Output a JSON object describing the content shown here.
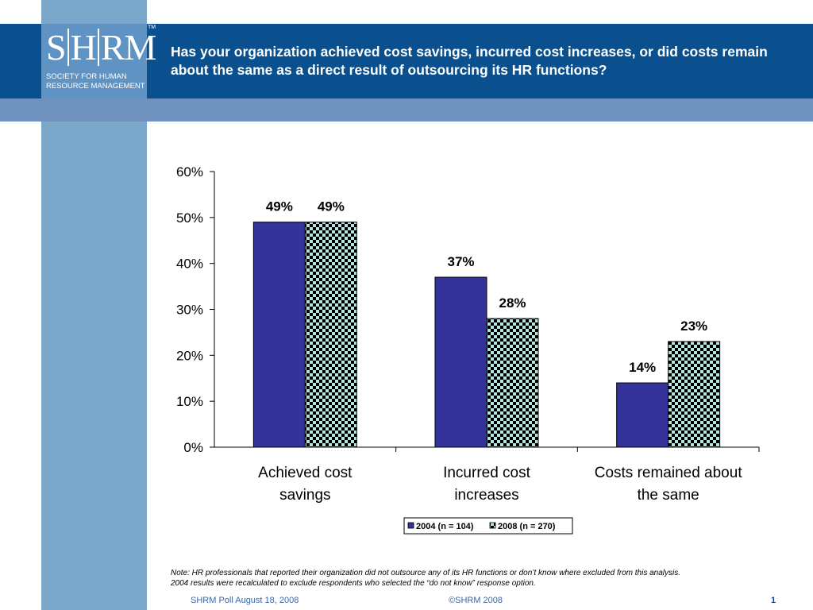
{
  "header": {
    "title": "Has your organization achieved cost savings, incurred cost increases, or did costs remain about the same as a direct result of outsourcing its HR functions?"
  },
  "logo": {
    "letters": [
      "S",
      "H",
      "R",
      "M"
    ],
    "tm": "TM",
    "line1": "SOCIETY FOR HUMAN",
    "line2": "RESOURCE MANAGEMENT"
  },
  "chart_data": {
    "type": "bar",
    "categories": [
      [
        "Achieved cost",
        "savings"
      ],
      [
        "Incurred cost",
        "increases"
      ],
      [
        "Costs remained about",
        "the same"
      ]
    ],
    "series": [
      {
        "name": "2004 (n = 104)",
        "values": [
          49,
          37,
          14
        ],
        "labels": [
          "49%",
          "37%",
          "14%"
        ],
        "color": "#333399",
        "pattern": "solid"
      },
      {
        "name": "2008 (n = 270)",
        "values": [
          49,
          28,
          23
        ],
        "labels": [
          "49%",
          "28%",
          "23%"
        ],
        "color": "#b7e4de",
        "pattern": "checkerboard"
      }
    ],
    "ylim": [
      0,
      60
    ],
    "yticks": [
      0,
      10,
      20,
      30,
      40,
      50,
      60
    ],
    "ytick_labels": [
      "0%",
      "10%",
      "20%",
      "30%",
      "40%",
      "50%",
      "60%"
    ],
    "grid": false,
    "legend_position": "bottom-center"
  },
  "note": {
    "line1": "Note:  HR professionals that reported their organization did not outsource any of its HR functions or don’t know where excluded from this analysis.",
    "line2": "2004 results were recalculated to exclude respondents who selected the “do not know” response option."
  },
  "footer": {
    "left": "SHRM Poll August 18, 2008",
    "center": "©SHRM 2008",
    "page": "1"
  }
}
